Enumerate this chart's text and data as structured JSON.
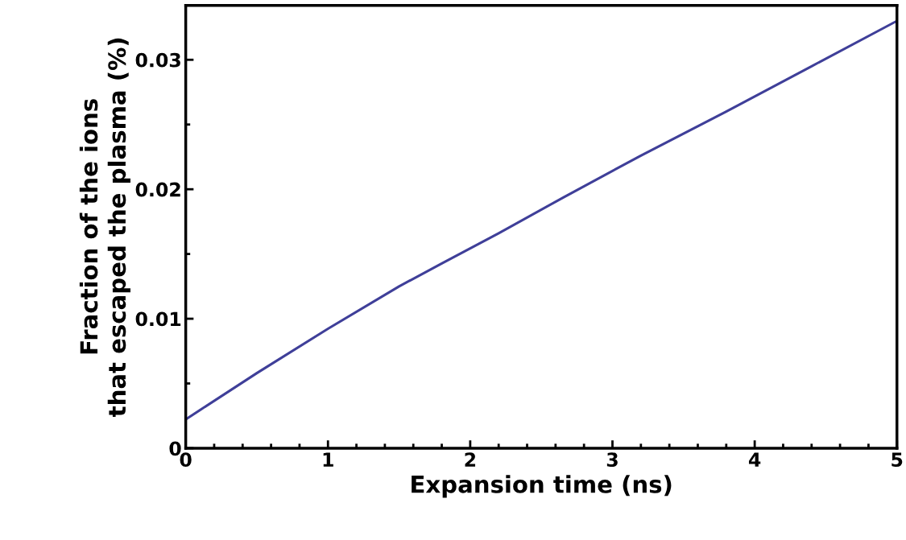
{
  "chart_data": {
    "type": "line",
    "xlabel": "Expansion time (ns)",
    "ylabel": "Fraction of the ions\nthat escaped the plasma (%)",
    "x": [
      0,
      0.5,
      1,
      1.5,
      1.8,
      2.2,
      2.66,
      3.2,
      3.8,
      4.4,
      5
    ],
    "series": [
      {
        "color": "#3f3f99",
        "values": [
          0.00223,
          0.0058,
          0.00923,
          0.0125,
          0.01427,
          0.0166,
          0.0194,
          0.0226,
          0.026,
          0.0295,
          0.033
        ]
      }
    ],
    "xlim": [
      0,
      5
    ],
    "xticks": [
      0,
      1,
      2,
      3,
      4,
      5
    ],
    "ylim": [
      0,
      0.0342
    ],
    "yticks": [
      0,
      0.01,
      0.02,
      0.03
    ],
    "grid": false,
    "legend": false,
    "marker": "none",
    "line_style": "solid"
  }
}
